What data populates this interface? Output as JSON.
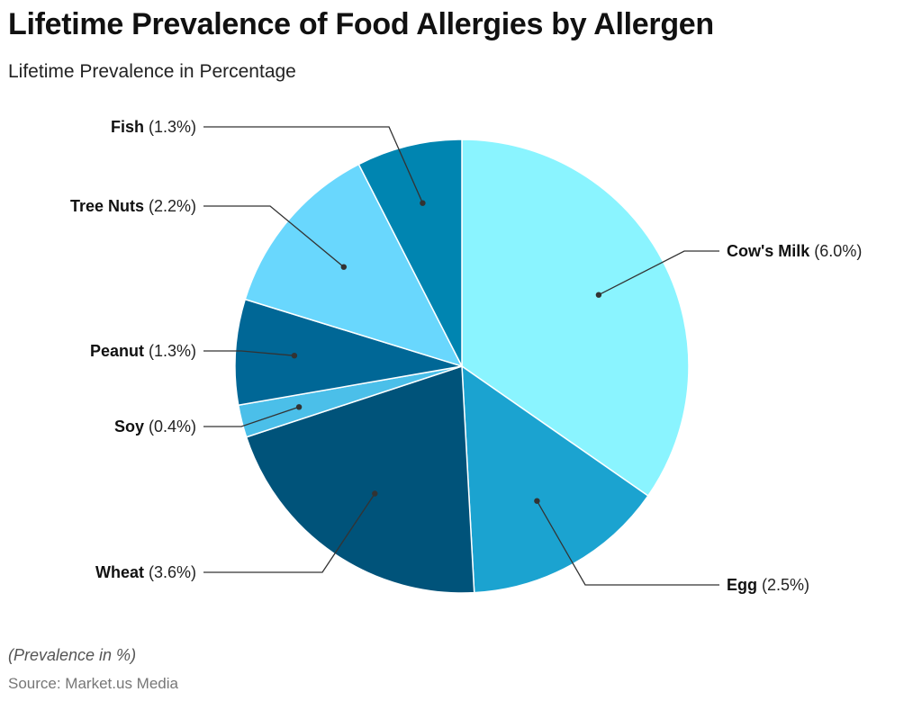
{
  "header": {
    "title": "Lifetime Prevalence of Food Allergies by Allergen",
    "subtitle": "Lifetime Prevalence in Percentage"
  },
  "footer": {
    "note": "(Prevalence in %)",
    "source": "Source: Market.us Media"
  },
  "chart_data": {
    "type": "pie",
    "title": "Lifetime Prevalence of Food Allergies by Allergen",
    "subtitle": "Lifetime Prevalence in Percentage",
    "unit": "%",
    "slices": [
      {
        "label": "Cow's Milk",
        "value": 6.0,
        "display": "(6.0%)",
        "color": "#8af4ff"
      },
      {
        "label": "Egg",
        "value": 2.5,
        "display": "(2.5%)",
        "color": "#1ba3d0"
      },
      {
        "label": "Wheat",
        "value": 3.6,
        "display": "(3.6%)",
        "color": "#00537a"
      },
      {
        "label": "Soy",
        "value": 0.4,
        "display": "(0.4%)",
        "color": "#4bbfe9"
      },
      {
        "label": "Peanut",
        "value": 1.3,
        "display": "(1.3%)",
        "color": "#006796"
      },
      {
        "label": "Tree Nuts",
        "value": 2.2,
        "display": "(2.2%)",
        "color": "#69d7fd"
      },
      {
        "label": "Fish",
        "value": 1.3,
        "display": "(1.3%)",
        "color": "#0085b1"
      }
    ],
    "start_direction": "12 o'clock",
    "direction": "clockwise",
    "legend": "none (external labels with leader lines)"
  }
}
